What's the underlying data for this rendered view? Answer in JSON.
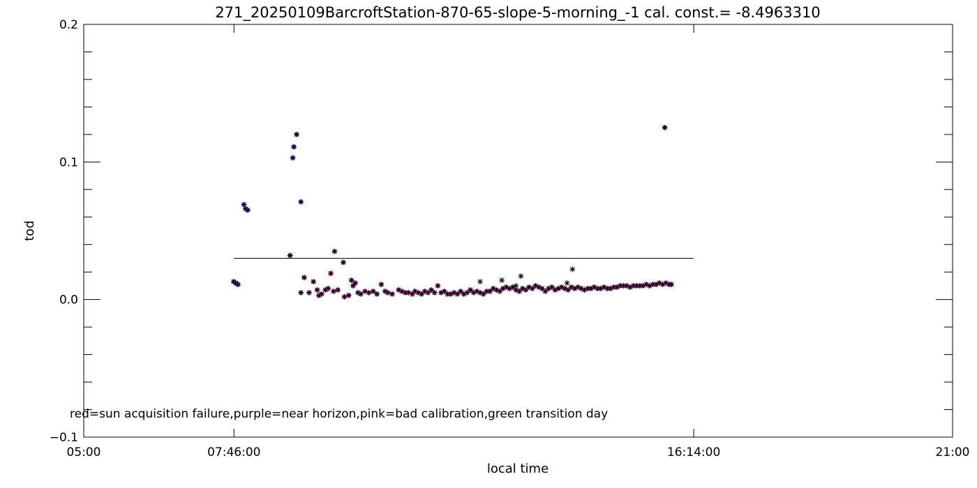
{
  "chart_data": {
    "type": "scatter",
    "title": "271_20250109BarcroftStation-870-65-slope-5-morning_-1 cal. const.= -8.4963310",
    "xlabel": "local time",
    "ylabel": "tod",
    "xlim_hours": [
      5.0,
      21.0
    ],
    "ylim": [
      -0.1,
      0.2
    ],
    "x_ticks": [
      {
        "value": 5.0,
        "label": "05:00"
      },
      {
        "value": 7.7667,
        "label": "07:46:00"
      },
      {
        "value": 16.2333,
        "label": "16:14:00"
      },
      {
        "value": 21.0,
        "label": "21:00"
      }
    ],
    "y_ticks": [
      {
        "value": -0.1,
        "label": "−0.1"
      },
      {
        "value": 0.0,
        "label": "0.0"
      },
      {
        "value": 0.1,
        "label": "0.1"
      },
      {
        "value": 0.2,
        "label": "0.2"
      }
    ],
    "threshold_line": {
      "y": 0.03,
      "x_start": 7.7667,
      "x_end": 16.2333
    },
    "legend_note": "red=sun acquisition failure,purple=near horizon,pink=bad calibration,green transition day",
    "colors": {
      "marker_black": "#000000",
      "near_horizon": "#9b30ff",
      "bad_calibration": "#e040c0",
      "frame": "#000000"
    },
    "series": [
      {
        "category": "near_horizon",
        "points": [
          [
            7.76,
            0.013
          ],
          [
            7.8,
            0.012
          ],
          [
            7.84,
            0.011
          ],
          [
            7.95,
            0.069
          ],
          [
            7.98,
            0.066
          ],
          [
            8.02,
            0.065
          ],
          [
            8.8,
            0.032
          ],
          [
            8.85,
            0.103
          ],
          [
            8.87,
            0.111
          ],
          [
            8.92,
            0.12
          ],
          [
            9.0,
            0.071
          ],
          [
            15.78,
            0.011
          ],
          [
            15.82,
            0.011
          ],
          [
            15.7,
            0.125
          ]
        ]
      },
      {
        "category": "bad_calibration",
        "points": [
          [
            9.0,
            0.005
          ],
          [
            9.06,
            0.016
          ],
          [
            9.15,
            0.005
          ],
          [
            9.23,
            0.013
          ],
          [
            9.3,
            0.007
          ],
          [
            9.33,
            0.003
          ],
          [
            9.38,
            0.004
          ],
          [
            9.45,
            0.007
          ],
          [
            9.5,
            0.008
          ],
          [
            9.55,
            0.019
          ],
          [
            9.62,
            0.035
          ],
          [
            9.6,
            0.006
          ],
          [
            9.68,
            0.007
          ],
          [
            9.78,
            0.027
          ],
          [
            9.8,
            0.002
          ],
          [
            9.88,
            0.003
          ],
          [
            9.93,
            0.014
          ],
          [
            9.96,
            0.01
          ],
          [
            10.0,
            0.012
          ],
          [
            10.05,
            0.005
          ],
          [
            10.1,
            0.004
          ],
          [
            10.18,
            0.006
          ],
          [
            10.25,
            0.005
          ],
          [
            10.33,
            0.006
          ],
          [
            10.4,
            0.004
          ],
          [
            10.48,
            0.011
          ],
          [
            10.55,
            0.006
          ],
          [
            10.6,
            0.005
          ],
          [
            10.68,
            0.004
          ],
          [
            10.8,
            0.007
          ],
          [
            10.86,
            0.006
          ],
          [
            10.92,
            0.005
          ],
          [
            10.98,
            0.005
          ],
          [
            11.05,
            0.004
          ],
          [
            11.1,
            0.006
          ],
          [
            11.16,
            0.005
          ],
          [
            11.22,
            0.004
          ],
          [
            11.28,
            0.006
          ],
          [
            11.34,
            0.005
          ],
          [
            11.4,
            0.007
          ],
          [
            11.46,
            0.005
          ],
          [
            11.52,
            0.01
          ],
          [
            11.58,
            0.005
          ],
          [
            11.64,
            0.006
          ],
          [
            11.7,
            0.004
          ],
          [
            11.76,
            0.004
          ],
          [
            11.82,
            0.005
          ],
          [
            11.88,
            0.004
          ],
          [
            11.94,
            0.006
          ],
          [
            12.0,
            0.004
          ],
          [
            12.06,
            0.005
          ],
          [
            12.12,
            0.007
          ],
          [
            12.18,
            0.005
          ],
          [
            12.24,
            0.006
          ],
          [
            12.3,
            0.005
          ],
          [
            12.36,
            0.004
          ],
          [
            12.42,
            0.006
          ],
          [
            12.48,
            0.006
          ],
          [
            12.54,
            0.008
          ],
          [
            12.6,
            0.007
          ],
          [
            12.66,
            0.006
          ],
          [
            12.72,
            0.008
          ],
          [
            12.78,
            0.009
          ],
          [
            12.84,
            0.008
          ],
          [
            12.9,
            0.009
          ],
          [
            12.96,
            0.007
          ],
          [
            13.02,
            0.006
          ],
          [
            13.08,
            0.008
          ],
          [
            13.14,
            0.007
          ],
          [
            13.2,
            0.009
          ],
          [
            13.26,
            0.008
          ],
          [
            13.32,
            0.01
          ],
          [
            13.38,
            0.009
          ],
          [
            13.44,
            0.008
          ],
          [
            13.5,
            0.006
          ],
          [
            13.56,
            0.008
          ],
          [
            13.62,
            0.009
          ],
          [
            13.68,
            0.007
          ],
          [
            13.74,
            0.008
          ],
          [
            13.8,
            0.009
          ],
          [
            13.86,
            0.008
          ],
          [
            13.92,
            0.007
          ],
          [
            13.98,
            0.009
          ],
          [
            14.04,
            0.008
          ],
          [
            14.1,
            0.009
          ],
          [
            14.16,
            0.008
          ],
          [
            14.22,
            0.007
          ],
          [
            14.28,
            0.008
          ],
          [
            14.34,
            0.008
          ],
          [
            14.4,
            0.009
          ],
          [
            14.46,
            0.008
          ],
          [
            14.52,
            0.008
          ],
          [
            14.58,
            0.009
          ],
          [
            14.64,
            0.008
          ],
          [
            14.7,
            0.008
          ],
          [
            14.76,
            0.009
          ],
          [
            14.82,
            0.009
          ],
          [
            14.88,
            0.01
          ],
          [
            14.94,
            0.01
          ],
          [
            15.0,
            0.01
          ],
          [
            15.06,
            0.009
          ],
          [
            15.12,
            0.01
          ],
          [
            15.18,
            0.01
          ],
          [
            15.24,
            0.01
          ],
          [
            15.3,
            0.01
          ],
          [
            15.36,
            0.011
          ],
          [
            15.42,
            0.01
          ],
          [
            15.48,
            0.011
          ],
          [
            15.54,
            0.011
          ],
          [
            15.6,
            0.012
          ],
          [
            15.66,
            0.011
          ],
          [
            15.72,
            0.012
          ]
        ]
      },
      {
        "category": "other",
        "points": [
          [
            12.3,
            0.013
          ],
          [
            12.7,
            0.014
          ],
          [
            13.05,
            0.017
          ],
          [
            14.0,
            0.022
          ],
          [
            13.9,
            0.012
          ],
          [
            12.96,
            0.01
          ]
        ]
      }
    ]
  }
}
